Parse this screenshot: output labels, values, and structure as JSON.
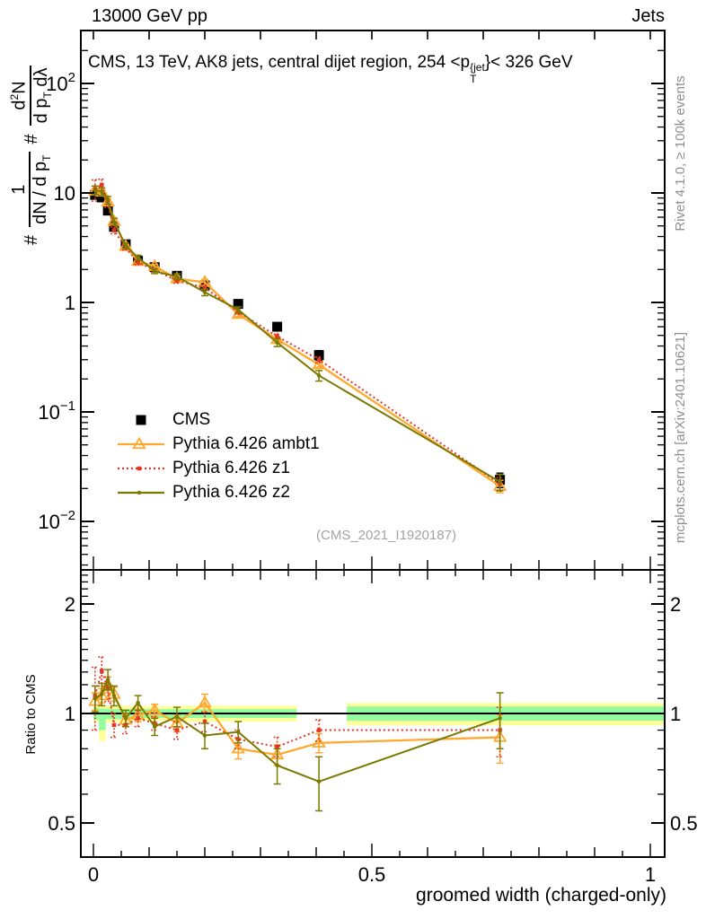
{
  "page": {
    "top_left_label": "13000 GeV pp",
    "top_right_label": "Jets",
    "watermark": "(CMS_2021_I1920187)",
    "right_text_top": "Rivet 4.1.0, ≥ 100k events",
    "right_text_bottom": "mcplots.cern.ch [arXiv:2401.10621]",
    "xlabel": "groomed width (charged-only)",
    "ratio_ylabel": "Ratio to CMS"
  },
  "title_parts": {
    "pre": "CMS, 13 TeV, AK8 jets, central dijet region, 254 <p",
    "sup": "{jet",
    "sub": "T",
    "post": "}< 326 GeV"
  },
  "ylabel_parts": {
    "hash1": "#",
    "f1_num": "1",
    "f1_den_a": "dN / d p",
    "f1_den_sub": "T",
    "hash2": "#",
    "f2_num_a": "d",
    "f2_num_sup": "2",
    "f2_num_b": "N",
    "f2_den_a": "d p",
    "f2_den_sub": "T",
    "f2_den_b": " dλ"
  },
  "chart_data": {
    "type": "line",
    "title": "CMS, 13 TeV, AK8 jets, central dijet region, 254 < pT{jet} < 326 GeV",
    "xlabel": "groomed width (charged-only)",
    "ylabel": "# 1/(dN/dpT) d2N/(dpT dLambda)",
    "x_range": [
      0,
      1
    ],
    "y_scale": "log",
    "y_range": [
      0.004,
      300
    ],
    "grid": false,
    "legend_position": "middle-left",
    "x": [
      0.003,
      0.015,
      0.026,
      0.037,
      0.058,
      0.08,
      0.11,
      0.15,
      0.2,
      0.26,
      0.33,
      0.405,
      0.73
    ],
    "series": [
      {
        "name": "CMS",
        "kind": "data",
        "color": "#000000",
        "marker": "square",
        "line": "none",
        "values": [
          9.6,
          9.1,
          6.9,
          4.9,
          3.4,
          2.4,
          2.1,
          1.75,
          1.43,
          0.97,
          0.6,
          0.33,
          0.024
        ],
        "err": [
          0.05,
          0.05,
          0.05,
          0.05,
          0.05,
          0.05,
          0.05,
          0.05,
          0.06,
          0.07,
          0.08,
          0.1,
          0.15
        ]
      },
      {
        "name": "Pythia 6.426 ambt1",
        "kind": "mc",
        "color": "#ffa82e",
        "marker": "triangle-open",
        "line": "solid",
        "values": [
          10.4,
          10.2,
          8.3,
          5.5,
          3.26,
          2.38,
          2.14,
          1.65,
          1.53,
          0.78,
          0.46,
          0.27,
          0.021
        ],
        "ratio": [
          1.08,
          1.12,
          1.2,
          1.13,
          0.96,
          0.99,
          1.02,
          0.94,
          1.07,
          0.8,
          0.77,
          0.83,
          0.86
        ],
        "err": [
          0.06,
          0.05,
          0.06,
          0.05,
          0.04,
          0.04,
          0.04,
          0.05,
          0.06,
          0.05,
          0.05,
          0.05,
          0.13
        ]
      },
      {
        "name": "Pythia 6.426 z1",
        "kind": "mc",
        "color": "#e63323",
        "marker": "small-square",
        "line": "dotted",
        "values": [
          10.8,
          11.9,
          8.1,
          4.56,
          3.16,
          2.33,
          1.97,
          1.58,
          1.36,
          0.82,
          0.49,
          0.3,
          0.022
        ],
        "ratio": [
          1.12,
          1.31,
          1.17,
          0.93,
          0.93,
          0.97,
          0.94,
          0.9,
          0.95,
          0.85,
          0.81,
          0.9,
          0.9
        ],
        "err": [
          0.22,
          0.12,
          0.09,
          0.07,
          0.05,
          0.05,
          0.04,
          0.05,
          0.06,
          0.05,
          0.05,
          0.06,
          0.14
        ]
      },
      {
        "name": "Pythia 6.426 z2",
        "kind": "mc",
        "color": "#7a7a00",
        "marker": "small-dot",
        "line": "solid",
        "values": [
          10.6,
          10.3,
          8.6,
          5.49,
          3.3,
          2.57,
          1.93,
          1.72,
          1.24,
          0.86,
          0.43,
          0.215,
          0.023
        ],
        "ratio": [
          1.1,
          1.13,
          1.24,
          1.12,
          0.97,
          1.07,
          0.92,
          0.98,
          0.87,
          0.89,
          0.72,
          0.65,
          0.97
        ],
        "err": [
          0.09,
          0.08,
          0.08,
          0.07,
          0.05,
          0.05,
          0.05,
          0.06,
          0.07,
          0.06,
          0.08,
          0.11,
          0.17
        ]
      }
    ],
    "ratio_panel": {
      "ylabel": "Ratio to CMS",
      "scale": "log",
      "reference": 1,
      "band_colors": {
        "outer": "#ffff99",
        "inner": "#94fba1"
      },
      "bands": {
        "yellow": [
          {
            "x0": 0.0,
            "x1": 0.01,
            "lo": 0.945,
            "hi": 1.055
          },
          {
            "x0": 0.01,
            "x1": 0.022,
            "lo": 0.84,
            "hi": 1.05
          },
          {
            "x0": 0.022,
            "x1": 0.065,
            "lo": 0.945,
            "hi": 1.05
          },
          {
            "x0": 0.065,
            "x1": 0.16,
            "lo": 0.955,
            "hi": 1.048
          },
          {
            "x0": 0.16,
            "x1": 0.365,
            "lo": 0.95,
            "hi": 1.05
          },
          {
            "x0": 0.455,
            "x1": 1.026,
            "lo": 0.928,
            "hi": 1.068
          }
        ],
        "green": [
          {
            "x0": 0.0,
            "x1": 0.01,
            "lo": 0.962,
            "hi": 1.038
          },
          {
            "x0": 0.01,
            "x1": 0.022,
            "lo": 0.9,
            "hi": 1.032
          },
          {
            "x0": 0.022,
            "x1": 0.065,
            "lo": 0.965,
            "hi": 1.03
          },
          {
            "x0": 0.065,
            "x1": 0.365,
            "lo": 0.972,
            "hi": 1.028
          },
          {
            "x0": 0.455,
            "x1": 1.026,
            "lo": 0.955,
            "hi": 1.045
          }
        ]
      }
    },
    "axes": {
      "main_yticks": [
        {
          "v": 100,
          "base": "10",
          "sup": "2"
        },
        {
          "v": 10,
          "base": "10",
          "sup": ""
        },
        {
          "v": 1,
          "base": "1",
          "sup": ""
        },
        {
          "v": 0.1,
          "base": "10",
          "sup": "−1"
        },
        {
          "v": 0.01,
          "base": "10",
          "sup": "−2"
        }
      ],
      "ratio_yticks": [
        {
          "v": 2,
          "label": "2"
        },
        {
          "v": 1,
          "label": "1"
        },
        {
          "v": 0.5,
          "label": "0.5"
        }
      ],
      "xticks": [
        {
          "v": 0,
          "label": "0"
        },
        {
          "v": 0.5,
          "label": "0.5"
        },
        {
          "v": 1,
          "label": "1"
        }
      ]
    }
  }
}
